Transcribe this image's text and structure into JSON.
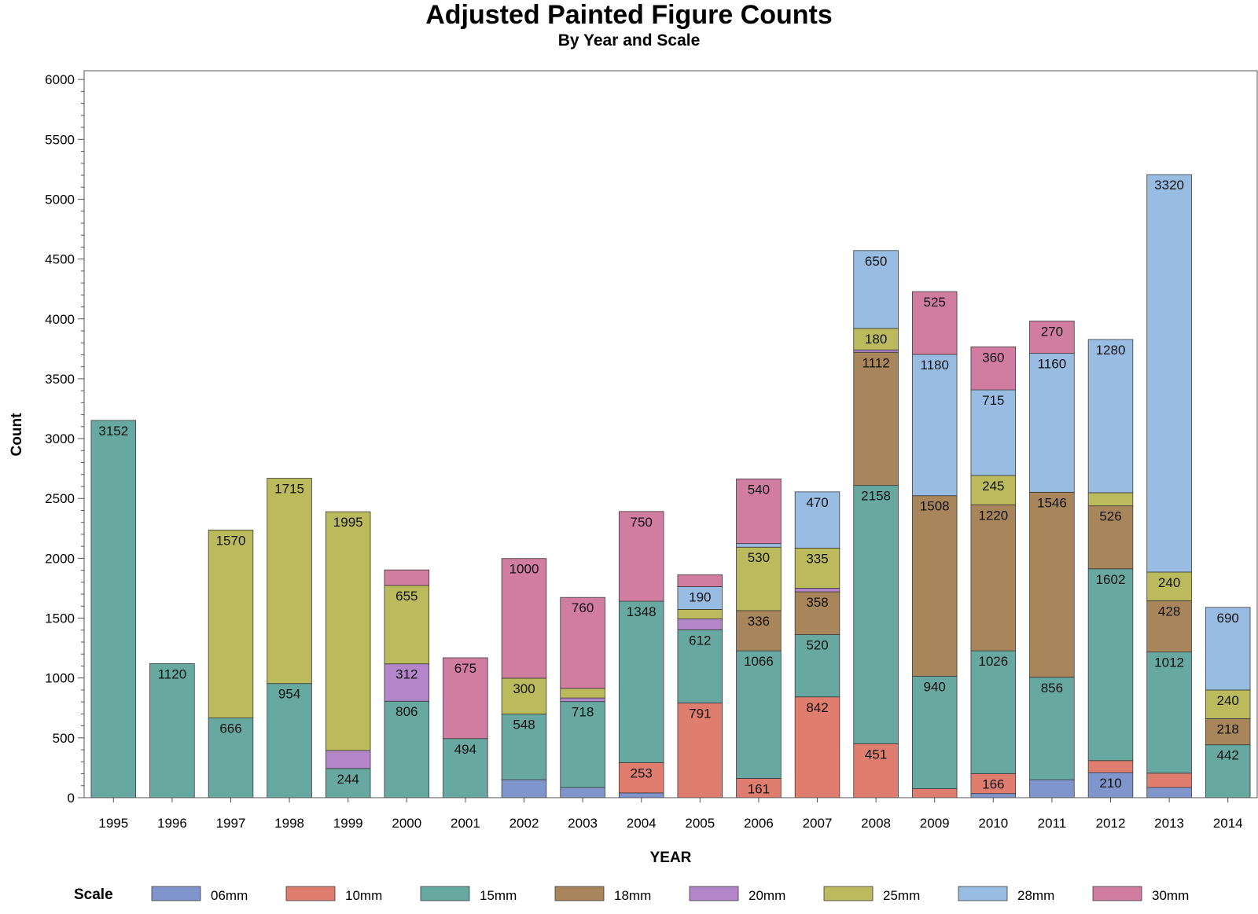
{
  "chart_data": {
    "type": "bar",
    "stacked": true,
    "title": "Adjusted Painted Figure Counts",
    "subtitle": "By Year and Scale",
    "xlabel": "YEAR",
    "ylabel": "Count",
    "ylim": [
      0,
      6000
    ],
    "yticks": [
      0,
      500,
      1000,
      1500,
      2000,
      2500,
      3000,
      3500,
      4000,
      4500,
      5000,
      5500,
      6000
    ],
    "legend_title": "Scale",
    "legend_position": "bottom",
    "categories": [
      "1995",
      "1996",
      "1997",
      "1998",
      "1999",
      "2000",
      "2001",
      "2002",
      "2003",
      "2004",
      "2005",
      "2006",
      "2007",
      "2008",
      "2009",
      "2010",
      "2011",
      "2012",
      "2013",
      "2014"
    ],
    "series": [
      {
        "name": "06mm",
        "color": "#7f95cc",
        "values": [
          0,
          0,
          0,
          0,
          0,
          0,
          0,
          150,
          85,
          40,
          0,
          0,
          0,
          0,
          0,
          35,
          150,
          210,
          85,
          0
        ],
        "labels": [
          null,
          null,
          null,
          null,
          null,
          null,
          null,
          null,
          null,
          null,
          null,
          null,
          null,
          null,
          null,
          null,
          null,
          210,
          null,
          null
        ]
      },
      {
        "name": "10mm",
        "color": "#df7d6f",
        "values": [
          0,
          0,
          0,
          0,
          0,
          0,
          0,
          0,
          0,
          253,
          791,
          161,
          842,
          451,
          75,
          166,
          0,
          100,
          120,
          0
        ],
        "labels": [
          null,
          null,
          null,
          null,
          null,
          null,
          null,
          null,
          null,
          253,
          791,
          161,
          842,
          451,
          null,
          166,
          null,
          null,
          null,
          null
        ]
      },
      {
        "name": "15mm",
        "color": "#67a8a0",
        "values": [
          3152,
          1120,
          666,
          954,
          244,
          806,
          494,
          548,
          718,
          1348,
          612,
          1066,
          520,
          2158,
          940,
          1026,
          856,
          1602,
          1012,
          442
        ],
        "labels": [
          3152,
          1120,
          666,
          954,
          244,
          806,
          494,
          548,
          718,
          1348,
          612,
          1066,
          520,
          2158,
          940,
          1026,
          856,
          1602,
          1012,
          442
        ]
      },
      {
        "name": "18mm",
        "color": "#a8855a",
        "values": [
          0,
          0,
          0,
          0,
          0,
          0,
          0,
          0,
          0,
          0,
          0,
          336,
          358,
          1112,
          1508,
          1220,
          1546,
          526,
          428,
          218
        ],
        "labels": [
          null,
          null,
          null,
          null,
          null,
          null,
          null,
          null,
          null,
          null,
          null,
          336,
          358,
          1112,
          1508,
          1220,
          1546,
          526,
          428,
          218
        ]
      },
      {
        "name": "20mm",
        "color": "#b386ca",
        "values": [
          0,
          0,
          0,
          0,
          150,
          312,
          0,
          0,
          30,
          0,
          90,
          0,
          30,
          20,
          0,
          0,
          0,
          0,
          0,
          0
        ],
        "labels": [
          null,
          null,
          null,
          null,
          null,
          312,
          null,
          null,
          null,
          null,
          null,
          null,
          null,
          null,
          null,
          null,
          null,
          null,
          null,
          null
        ]
      },
      {
        "name": "25mm",
        "color": "#bbba5c",
        "values": [
          0,
          0,
          1570,
          1715,
          1995,
          655,
          0,
          300,
          80,
          0,
          80,
          530,
          335,
          180,
          0,
          245,
          0,
          110,
          240,
          240
        ],
        "labels": [
          null,
          null,
          1570,
          1715,
          1995,
          655,
          null,
          300,
          null,
          null,
          null,
          530,
          335,
          180,
          null,
          245,
          null,
          null,
          240,
          240
        ]
      },
      {
        "name": "28mm",
        "color": "#99bde2",
        "values": [
          0,
          0,
          0,
          0,
          0,
          0,
          0,
          0,
          0,
          0,
          190,
          30,
          470,
          650,
          1180,
          715,
          1160,
          1280,
          3320,
          690
        ],
        "labels": [
          null,
          null,
          null,
          null,
          null,
          null,
          null,
          null,
          null,
          null,
          190,
          null,
          470,
          650,
          1180,
          715,
          1160,
          1280,
          3320,
          690
        ]
      },
      {
        "name": "30mm",
        "color": "#d07da0",
        "values": [
          0,
          0,
          0,
          0,
          0,
          130,
          675,
          1000,
          760,
          750,
          100,
          540,
          0,
          0,
          525,
          360,
          270,
          0,
          0,
          0
        ],
        "labels": [
          null,
          null,
          null,
          null,
          null,
          null,
          675,
          1000,
          760,
          750,
          null,
          540,
          null,
          null,
          525,
          360,
          270,
          null,
          null,
          null
        ]
      }
    ]
  }
}
